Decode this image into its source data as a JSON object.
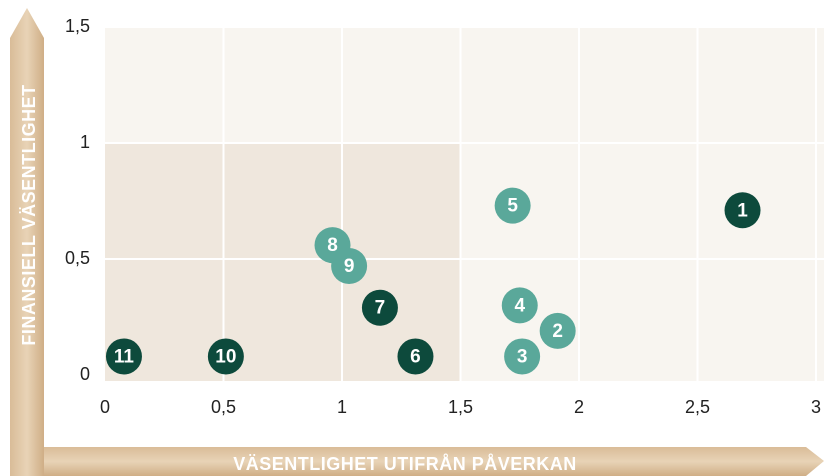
{
  "chart_data": {
    "type": "scatter",
    "xlabel": "VÄSENTLIGHET UTIFRÅN PÅVERKAN",
    "ylabel": "FINANSIELL VÄSENTLIGHET",
    "xlim": [
      0,
      3
    ],
    "ylim": [
      0,
      1.5
    ],
    "xticks": [
      0,
      {
        "value": 0.5,
        "label": "0,5"
      },
      1,
      {
        "value": 1.5,
        "label": "1,5"
      },
      2,
      {
        "value": 2.5,
        "label": "2,5"
      },
      3
    ],
    "yticks": [
      0,
      {
        "value": 0.5,
        "label": "0,5"
      },
      1,
      {
        "value": 1.5,
        "label": "1,5"
      }
    ],
    "grid": true,
    "highlight_region": {
      "x": [
        0,
        1.5
      ],
      "y": [
        0,
        1
      ],
      "color": "#efe7dd"
    },
    "background": "#f8f5f0",
    "points": [
      {
        "label": "1",
        "x": 2.69,
        "y": 0.71,
        "color": "#0d4a3c"
      },
      {
        "label": "2",
        "x": 1.91,
        "y": 0.19,
        "color": "#5aa89a"
      },
      {
        "label": "3",
        "x": 1.76,
        "y": 0.08,
        "color": "#5aa89a"
      },
      {
        "label": "4",
        "x": 1.75,
        "y": 0.3,
        "color": "#5aa89a"
      },
      {
        "label": "5",
        "x": 1.72,
        "y": 0.73,
        "color": "#5aa89a"
      },
      {
        "label": "6",
        "x": 1.31,
        "y": 0.08,
        "color": "#0d4a3c"
      },
      {
        "label": "7",
        "x": 1.16,
        "y": 0.29,
        "color": "#0d4a3c"
      },
      {
        "label": "8",
        "x": 0.96,
        "y": 0.56,
        "color": "#5aa89a"
      },
      {
        "label": "9",
        "x": 1.03,
        "y": 0.47,
        "color": "#5aa89a"
      },
      {
        "label": "10",
        "x": 0.51,
        "y": 0.08,
        "color": "#0d4a3c"
      },
      {
        "label": "11",
        "x": 0.08,
        "y": 0.08,
        "color": "#0d4a3c"
      }
    ]
  }
}
